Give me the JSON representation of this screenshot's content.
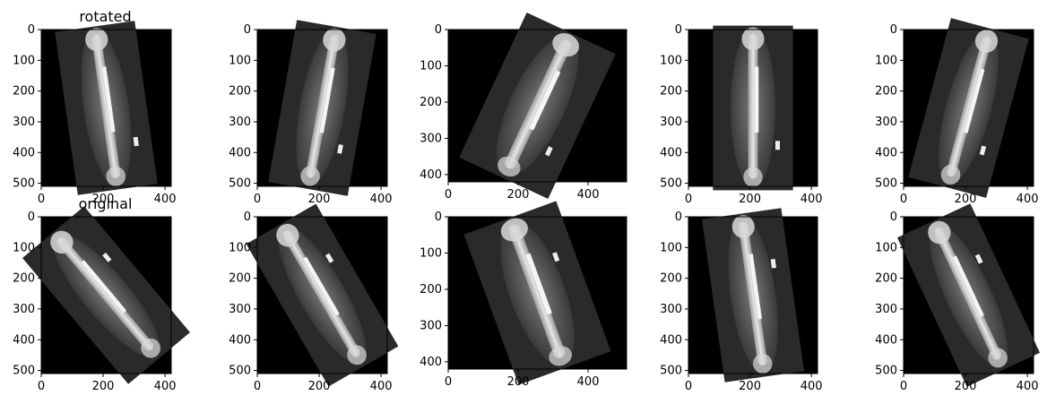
{
  "rows": [
    {
      "title": "rotated",
      "panels": [
        {
          "xticks": [
            "0",
            "200",
            "400"
          ],
          "yticks": [
            "0",
            "100",
            "200",
            "300",
            "400",
            "500"
          ]
        },
        {
          "xticks": [
            "0",
            "200",
            "400"
          ],
          "yticks": [
            "0",
            "100",
            "200",
            "300",
            "400",
            "500"
          ]
        },
        {
          "xticks": [
            "0",
            "200",
            "400"
          ],
          "yticks": [
            "0",
            "100",
            "200",
            "300",
            "400"
          ]
        },
        {
          "xticks": [
            "0",
            "200",
            "400"
          ],
          "yticks": [
            "0",
            "100",
            "200",
            "300",
            "400",
            "500"
          ]
        },
        {
          "xticks": [
            "0",
            "200",
            "400"
          ],
          "yticks": [
            "0",
            "100",
            "200",
            "300",
            "400",
            "500"
          ]
        }
      ]
    },
    {
      "title": "original",
      "panels": [
        {
          "xticks": [
            "0",
            "200",
            "400"
          ],
          "yticks": [
            "0",
            "100",
            "200",
            "300",
            "400",
            "500"
          ]
        },
        {
          "xticks": [
            "0",
            "200",
            "400"
          ],
          "yticks": [
            "0",
            "100",
            "200",
            "300",
            "400",
            "500"
          ]
        },
        {
          "xticks": [
            "0",
            "200",
            "400"
          ],
          "yticks": [
            "0",
            "100",
            "200",
            "300",
            "400"
          ]
        },
        {
          "xticks": [
            "0",
            "200",
            "400"
          ],
          "yticks": [
            "0",
            "100",
            "200",
            "300",
            "400",
            "500"
          ]
        },
        {
          "xticks": [
            "0",
            "200",
            "400"
          ],
          "yticks": [
            "0",
            "100",
            "200",
            "300",
            "400",
            "500"
          ]
        }
      ]
    }
  ],
  "colors": {
    "background": "#000000",
    "bone": "#d8d8d8",
    "tissue": "#5a5a5a"
  }
}
